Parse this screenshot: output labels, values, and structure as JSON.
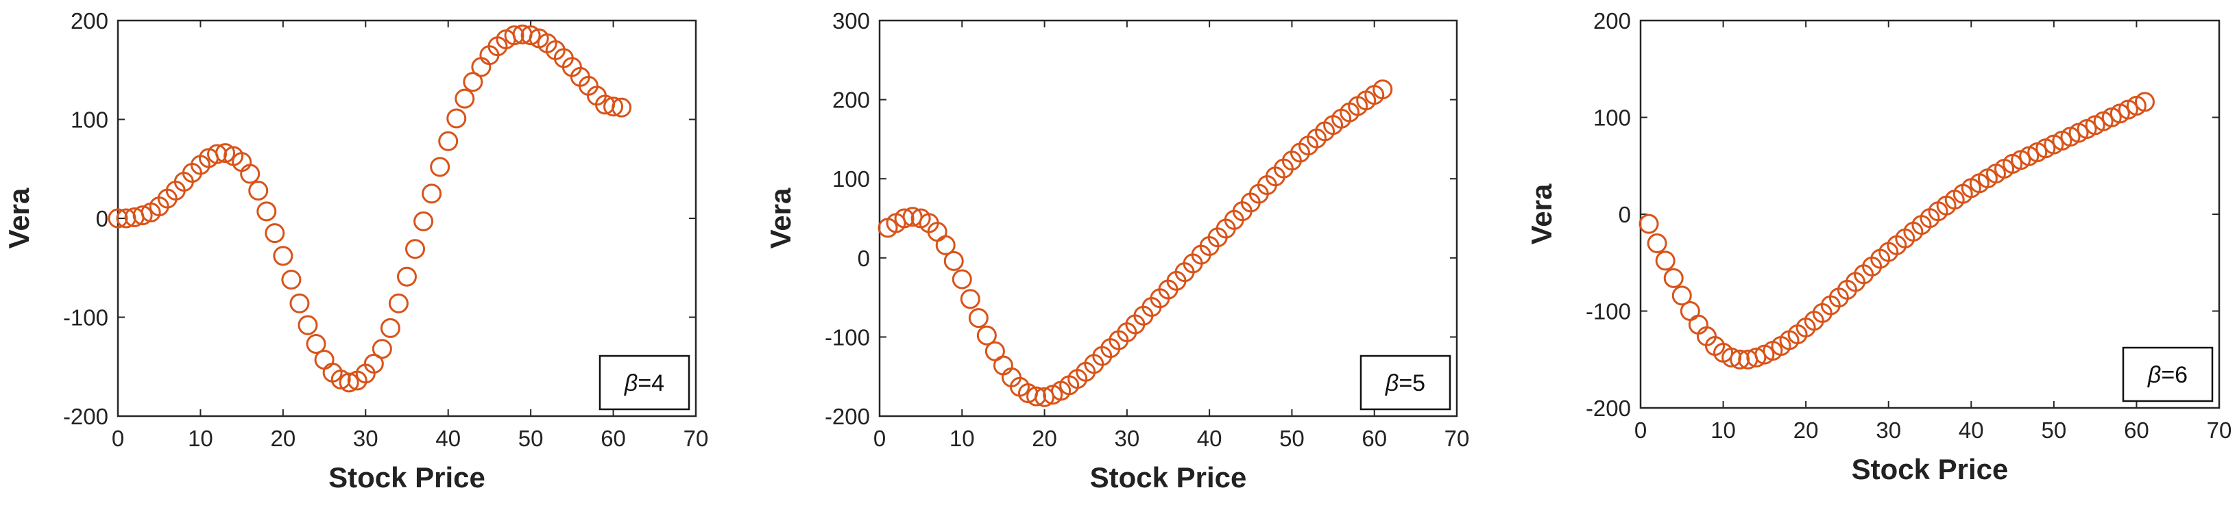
{
  "colors": {
    "marker": "#D95319",
    "axis": "#262626",
    "background": "#ffffff"
  },
  "chart_data": [
    {
      "type": "scatter",
      "marker": "circle",
      "xlabel": "Stock Price",
      "ylabel": "Vera",
      "xlim": [
        0,
        70
      ],
      "ylim": [
        -200,
        200
      ],
      "xticks": [
        0,
        10,
        20,
        30,
        40,
        50,
        60,
        70
      ],
      "yticks": [
        -200,
        -100,
        0,
        100,
        200
      ],
      "grid": false,
      "legend_placement": "bottom-right",
      "legend": {
        "symbol": "β",
        "text": "=4"
      },
      "x": [
        0,
        1,
        2,
        3,
        4,
        5,
        6,
        7,
        8,
        9,
        10,
        11,
        12,
        13,
        14,
        15,
        16,
        17,
        18,
        19,
        20,
        21,
        22,
        23,
        24,
        25,
        26,
        27,
        28,
        29,
        30,
        31,
        32,
        33,
        34,
        35,
        36,
        37,
        38,
        39,
        40,
        41,
        42,
        43,
        44,
        45,
        46,
        47,
        48,
        49,
        50,
        51,
        52,
        53,
        54,
        55,
        56,
        57,
        58,
        59,
        60,
        61
      ],
      "y": [
        0,
        0,
        1,
        3,
        6,
        12,
        20,
        28,
        37,
        46,
        54,
        61,
        65,
        66,
        63,
        57,
        45,
        28,
        7,
        -15,
        -38,
        -62,
        -86,
        -108,
        -127,
        -143,
        -156,
        -163,
        -166,
        -164,
        -157,
        -147,
        -132,
        -111,
        -86,
        -59,
        -31,
        -3,
        25,
        52,
        78,
        101,
        121,
        138,
        153,
        165,
        174,
        181,
        185,
        186,
        185,
        182,
        177,
        170,
        162,
        153,
        143,
        134,
        124,
        115,
        113,
        112
      ]
    },
    {
      "type": "scatter",
      "marker": "circle",
      "xlabel": "Stock Price",
      "ylabel": "Vera",
      "xlim": [
        0,
        70
      ],
      "ylim": [
        -200,
        300
      ],
      "xticks": [
        0,
        10,
        20,
        30,
        40,
        50,
        60,
        70
      ],
      "yticks": [
        -200,
        -100,
        0,
        100,
        200,
        300
      ],
      "grid": false,
      "legend_placement": "bottom-right",
      "legend": {
        "symbol": "β",
        "text": "=5"
      },
      "x": [
        1,
        2,
        3,
        4,
        5,
        6,
        7,
        8,
        9,
        10,
        11,
        12,
        13,
        14,
        15,
        16,
        17,
        18,
        19,
        20,
        21,
        22,
        23,
        24,
        25,
        26,
        27,
        28,
        29,
        30,
        31,
        32,
        33,
        34,
        35,
        36,
        37,
        38,
        39,
        40,
        41,
        42,
        43,
        44,
        45,
        46,
        47,
        48,
        49,
        50,
        51,
        52,
        53,
        54,
        55,
        56,
        57,
        58,
        59,
        60,
        61
      ],
      "y": [
        38,
        44,
        50,
        52,
        50,
        44,
        33,
        16,
        -4,
        -27,
        -52,
        -76,
        -98,
        -118,
        -136,
        -151,
        -163,
        -171,
        -175,
        -176,
        -173,
        -168,
        -161,
        -153,
        -144,
        -134,
        -124,
        -114,
        -104,
        -94,
        -84,
        -73,
        -62,
        -51,
        -40,
        -29,
        -18,
        -7,
        4,
        15,
        26,
        37,
        48,
        59,
        70,
        81,
        92,
        103,
        113,
        123,
        133,
        142,
        151,
        160,
        168,
        176,
        184,
        192,
        199,
        206,
        213
      ]
    },
    {
      "type": "scatter",
      "marker": "circle",
      "xlabel": "Stock Price",
      "ylabel": "Vera",
      "xlim": [
        0,
        70
      ],
      "ylim": [
        -200,
        200
      ],
      "xticks": [
        0,
        10,
        20,
        30,
        40,
        50,
        60,
        70
      ],
      "yticks": [
        -200,
        -100,
        0,
        100,
        200
      ],
      "grid": false,
      "legend_placement": "bottom-right",
      "legend": {
        "symbol": "β",
        "text": "=6"
      },
      "x": [
        1,
        2,
        3,
        4,
        5,
        6,
        7,
        8,
        9,
        10,
        11,
        12,
        13,
        14,
        15,
        16,
        17,
        18,
        19,
        20,
        21,
        22,
        23,
        24,
        25,
        26,
        27,
        28,
        29,
        30,
        31,
        32,
        33,
        34,
        35,
        36,
        37,
        38,
        39,
        40,
        41,
        42,
        43,
        44,
        45,
        46,
        47,
        48,
        49,
        50,
        51,
        52,
        53,
        54,
        55,
        56,
        57,
        58,
        59,
        60,
        61
      ],
      "y": [
        -10,
        -30,
        -48,
        -66,
        -84,
        -100,
        -114,
        -126,
        -136,
        -143,
        -148,
        -150,
        -150,
        -148,
        -145,
        -141,
        -136,
        -130,
        -124,
        -117,
        -110,
        -102,
        -94,
        -86,
        -78,
        -70,
        -62,
        -54,
        -46,
        -39,
        -32,
        -25,
        -18,
        -11,
        -4,
        3,
        9,
        15,
        21,
        27,
        32,
        37,
        42,
        47,
        52,
        56,
        60,
        64,
        68,
        72,
        76,
        80,
        84,
        88,
        92,
        96,
        100,
        104,
        108,
        112,
        116
      ]
    }
  ]
}
